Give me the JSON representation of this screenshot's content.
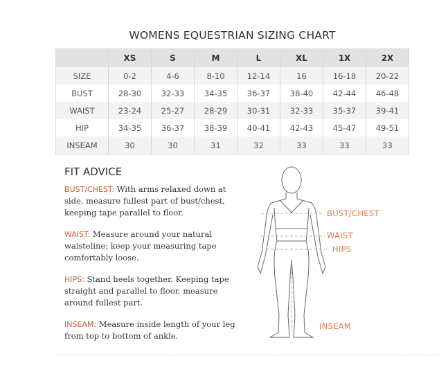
{
  "title": "WOMENS EQUESTRIAN SIZING CHART",
  "table": {
    "headers": [
      "",
      "XS",
      "S",
      "M",
      "L",
      "XL",
      "1X",
      "2X"
    ],
    "rows": [
      [
        "SIZE",
        "0-2",
        "4-6",
        "8-10",
        "12-14",
        "16",
        "16-18",
        "20-22"
      ],
      [
        "BUST",
        "28-30",
        "32-33",
        "34-35",
        "36-37",
        "38-40",
        "42-44",
        "46-48"
      ],
      [
        "WAIST",
        "23-24",
        "25-27",
        "28-29",
        "30-31",
        "32-33",
        "35-37",
        "39-41"
      ],
      [
        "HIP",
        "34-35",
        "36-37",
        "38-39",
        "40-41",
        "42-43",
        "45-47",
        "49-51"
      ],
      [
        "INSEAM",
        "30",
        "30",
        "31",
        "32",
        "33",
        "33",
        "33"
      ]
    ]
  },
  "fit": {
    "title": "FIT ADVICE",
    "items": [
      {
        "key": "BUST/CHEST:",
        "text": " With arms relaxed down at side, measure fullest part of bust/chest, keeping tape parallel to floor."
      },
      {
        "key": "WAIST:",
        "text": " Measure around your natural waisteline; keep your measuring tape comfortably loose."
      },
      {
        "key": "HIPS:",
        "text": " Stand heels together. Keeping tape straight and parallel to floor, measure around fullest part."
      },
      {
        "key": "INSEAM:",
        "text": " Measure inside length of your leg from top to bottom of ankle."
      }
    ]
  },
  "figure_labels": {
    "bust": "BUST/CHEST",
    "waist": "WAIST",
    "hips": "HIPS",
    "inseam": "INSEAM"
  },
  "colors": {
    "accent": "#e07a4c",
    "header_bg": "#e2e2e2"
  },
  "figure_icon": "body-measurement-figure"
}
